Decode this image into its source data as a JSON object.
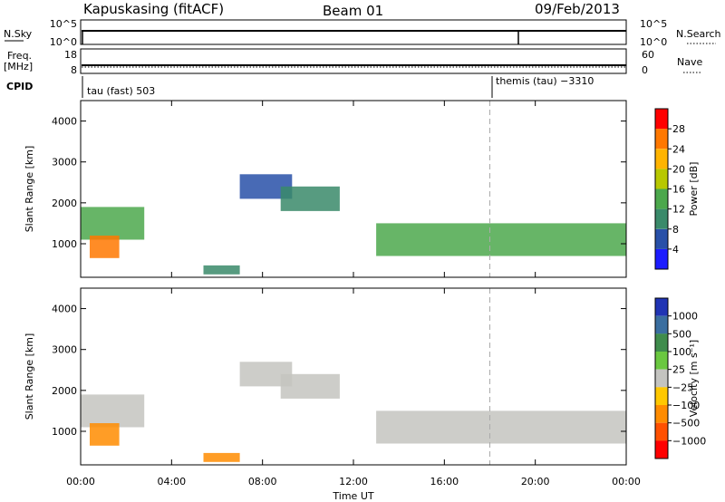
{
  "header": {
    "station": "Kapuskasing (fitACF)",
    "beam": "Beam 01",
    "date": "09/Feb/2013"
  },
  "summary_panel": {
    "left_label_top": "N.Sky",
    "left_label_bottom_line1": "Freq.",
    "left_label_bottom_line2": "[MHz]",
    "right_label_top": "N.Search",
    "right_label_bottom": "Nave",
    "cpid_label": "CPID",
    "nsky_ticks": [
      "10^5",
      "10^0"
    ],
    "nsearch_ticks": [
      "10^5",
      "10^0"
    ],
    "freq_ticks": [
      "18",
      "8"
    ],
    "nave_ticks": [
      "60",
      "0"
    ],
    "cpid_segments": [
      {
        "text": "tau (fast) 503",
        "start": 0
      },
      {
        "text": "themis (tau) −3310",
        "start": 18.0
      }
    ]
  },
  "chart_data": [
    {
      "type": "heatmap",
      "title": "",
      "xlabel": "",
      "ylabel": "Slant Range [km]",
      "xlim": [
        0,
        24
      ],
      "ylim": [
        180,
        4500
      ],
      "x_ticks": [
        0,
        4,
        8,
        12,
        16,
        20,
        24
      ],
      "y_ticks": [
        1000,
        2000,
        3000,
        4000
      ],
      "marker_line_x": 18.0,
      "colorbar": {
        "label": "Power [dB]",
        "tick_labels": [
          "4",
          "8",
          "12",
          "16",
          "20",
          "24",
          "28"
        ],
        "colors": [
          "#1c1cff",
          "#2850a8",
          "#3a8a6a",
          "#4ca84c",
          "#b8c800",
          "#ffb400",
          "#ff7800",
          "#ff0000"
        ]
      },
      "regions": [
        {
          "x": [
            0.0,
            2.8
          ],
          "y": [
            1100,
            1900
          ],
          "value": 12
        },
        {
          "x": [
            0.4,
            1.7
          ],
          "y": [
            650,
            1200
          ],
          "value": 26
        },
        {
          "x": [
            5.4,
            7.0
          ],
          "y": [
            250,
            470
          ],
          "value": 10
        },
        {
          "x": [
            7.0,
            9.3
          ],
          "y": [
            2100,
            2700
          ],
          "value": 6
        },
        {
          "x": [
            8.8,
            11.4
          ],
          "y": [
            1800,
            2400
          ],
          "value": 10
        },
        {
          "x": [
            13.0,
            24.0
          ],
          "y": [
            700,
            1500
          ],
          "value": 14
        }
      ]
    },
    {
      "type": "heatmap",
      "title": "",
      "xlabel": "Time UT",
      "ylabel": "Slant Range [km]",
      "xlim": [
        0,
        24
      ],
      "ylim": [
        180,
        4500
      ],
      "x_ticks": [
        0,
        4,
        8,
        12,
        16,
        20,
        24
      ],
      "x_tick_labels": [
        "00:00",
        "04:00",
        "08:00",
        "12:00",
        "16:00",
        "20:00",
        "00:00"
      ],
      "y_ticks": [
        1000,
        2000,
        3000,
        4000
      ],
      "marker_line_x": 18.0,
      "colorbar": {
        "label": "Velocity [m s⁻¹]",
        "tick_labels": [
          "1000",
          "500",
          "100",
          "25",
          "−25",
          "−100",
          "−500",
          "−1000"
        ],
        "colors": [
          "#2034b4",
          "#3a6ea0",
          "#3f8c4c",
          "#6ac840",
          "#c4c4c0",
          "#ffc800",
          "#ff8c00",
          "#ff5000",
          "#ff0000"
        ]
      },
      "regions": [
        {
          "x": [
            0.0,
            2.8
          ],
          "y": [
            1100,
            1900
          ],
          "value": 0
        },
        {
          "x": [
            0.4,
            1.7
          ],
          "y": [
            650,
            1200
          ],
          "value": -300
        },
        {
          "x": [
            5.4,
            7.0
          ],
          "y": [
            250,
            470
          ],
          "value": -150
        },
        {
          "x": [
            7.0,
            9.3
          ],
          "y": [
            2100,
            2700
          ],
          "value": 0
        },
        {
          "x": [
            8.8,
            11.4
          ],
          "y": [
            1800,
            2400
          ],
          "value": 0
        },
        {
          "x": [
            13.0,
            24.0
          ],
          "y": [
            700,
            1500
          ],
          "value": 0
        }
      ]
    }
  ]
}
